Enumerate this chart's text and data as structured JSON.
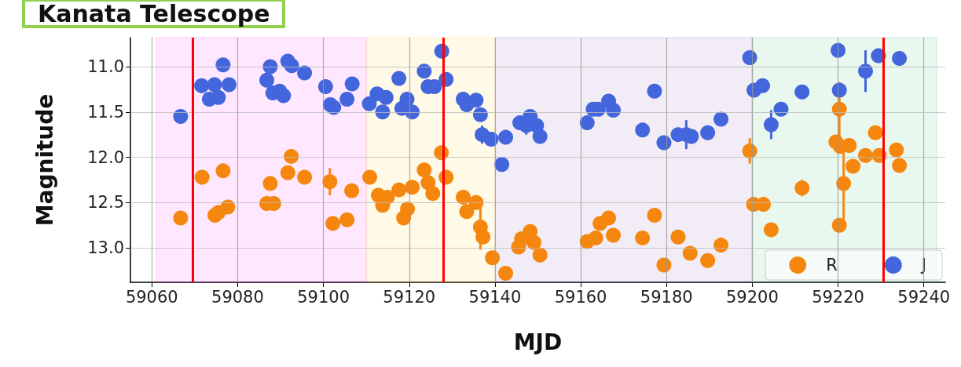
{
  "chart_data": {
    "type": "scatter",
    "title": "Kanata Telescope",
    "xlabel": "MJD",
    "ylabel": "Magnitude",
    "xlim": [
      59055,
      59245
    ],
    "xticks": [
      59060,
      59080,
      59100,
      59120,
      59140,
      59160,
      59180,
      59200,
      59220,
      59240
    ],
    "ylim": [
      13.38,
      10.68
    ],
    "yticks": [
      {
        "value": 11,
        "label": "11.0"
      },
      {
        "value": 11.5,
        "label": "11.5"
      },
      {
        "value": 12,
        "label": "12.0"
      },
      {
        "value": 12.5,
        "label": "12.5"
      },
      {
        "value": 13,
        "label": "13.0"
      }
    ],
    "grid": true,
    "legend": "bottom right",
    "marker": "circle",
    "bands": [
      {
        "axis": "x",
        "from": 59061,
        "to": 59110,
        "color": "#ff00ff"
      },
      {
        "axis": "x",
        "from": 59110,
        "to": 59140,
        "color": "#ffc000"
      },
      {
        "axis": "x",
        "from": 59140,
        "to": 59200,
        "color": "#7030a0"
      },
      {
        "axis": "x",
        "from": 59200,
        "to": 59243,
        "color": "#00b050"
      }
    ],
    "ref_lines": [
      {
        "axis": "x",
        "value": 59069.6,
        "color": "#ff0000"
      },
      {
        "axis": "x",
        "value": 59128,
        "color": "#ff0000"
      },
      {
        "axis": "x",
        "value": 59230.5,
        "color": "#ff0000"
      }
    ],
    "series": [
      {
        "name": "R",
        "color": "#f5870f",
        "x": [
          59066.7,
          59071.7,
          59074.7,
          59075.5,
          59076.6,
          59077.7,
          59086.8,
          59087.6,
          59088.4,
          59091.7,
          59092.5,
          59095.6,
          59101.5,
          59102.2,
          59105.5,
          59106.6,
          59110.8,
          59112.8,
          59113.8,
          59114.9,
          59117.6,
          59118.7,
          59119.6,
          59120.7,
          59123.5,
          59124.4,
          59125.5,
          59127.5,
          59128.6,
          59132.6,
          59133.4,
          59135.6,
          59136.6,
          59137.2,
          59139.4,
          59142.5,
          59145.5,
          59146.2,
          59148.2,
          59149.1,
          59150.5,
          59161.5,
          59163.5,
          59164.5,
          59166.5,
          59167.6,
          59174.4,
          59177.2,
          59179.4,
          59182.7,
          59185.5,
          59189.6,
          59192.7,
          59199.4,
          59200.3,
          59202.6,
          59204.4,
          59211.6,
          59220.3,
          59219.5,
          59220.5,
          59220.3,
          59221.3,
          59222.6,
          59223.5,
          59226.4,
          59228.7,
          59229.6,
          59233.6,
          59234.3
        ],
        "values": [
          12.67,
          12.22,
          12.64,
          12.61,
          12.15,
          12.55,
          12.51,
          12.29,
          12.51,
          12.17,
          11.99,
          12.22,
          12.27,
          12.73,
          12.69,
          12.37,
          12.22,
          12.42,
          12.53,
          12.44,
          12.36,
          12.67,
          12.57,
          12.33,
          12.14,
          12.28,
          12.4,
          11.95,
          12.22,
          12.44,
          12.6,
          12.5,
          12.77,
          12.88,
          13.11,
          13.28,
          12.99,
          12.9,
          12.82,
          12.94,
          13.08,
          12.93,
          12.89,
          12.73,
          12.67,
          12.86,
          12.89,
          12.64,
          13.19,
          12.88,
          13.06,
          13.14,
          12.97,
          11.93,
          12.52,
          12.52,
          12.8,
          12.34,
          11.47,
          11.83,
          11.88,
          12.75,
          12.29,
          11.87,
          12.1,
          11.98,
          11.73,
          11.98,
          11.92,
          12.09
        ],
        "errors": [
          null,
          null,
          null,
          null,
          null,
          null,
          null,
          null,
          null,
          null,
          0.06,
          null,
          0.15,
          null,
          null,
          null,
          null,
          null,
          null,
          null,
          null,
          null,
          null,
          null,
          null,
          null,
          null,
          null,
          null,
          null,
          null,
          null,
          0.25,
          null,
          null,
          null,
          null,
          null,
          null,
          null,
          null,
          null,
          null,
          null,
          null,
          null,
          null,
          null,
          null,
          null,
          null,
          null,
          null,
          0.14,
          null,
          null,
          null,
          0.09,
          0.3,
          null,
          null,
          null,
          0.4,
          null,
          null,
          null,
          null,
          null,
          null,
          null
        ]
      },
      {
        "name": "J",
        "color": "#4466dd",
        "x": [
          59066.7,
          59071.6,
          59073.4,
          59074.6,
          59075.5,
          59076.6,
          59078,
          59086.8,
          59087.6,
          59088.2,
          59089.8,
          59090.7,
          59091.7,
          59092.6,
          59095.6,
          59100.5,
          59101.6,
          59102.4,
          59105.5,
          59106.7,
          59110.7,
          59112.5,
          59114.6,
          59113.8,
          59117.6,
          59119.5,
          59118.3,
          59120.7,
          59123.5,
          59124.4,
          59125.9,
          59127.6,
          59128.6,
          59132.6,
          59133.4,
          59135.6,
          59136.6,
          59137,
          59139.1,
          59142.5,
          59141.6,
          59145.8,
          59147.3,
          59148.2,
          59149.7,
          59150.5,
          59161.5,
          59162.9,
          59164.1,
          59166.5,
          59167.6,
          59174.4,
          59177.2,
          59179.4,
          59182.7,
          59184.6,
          59185.8,
          59189.6,
          59192.7,
          59199.4,
          59200.4,
          59202.4,
          59204.4,
          59206.7,
          59211.6,
          59220,
          59220.3,
          59226.4,
          59229.4,
          59234.3
        ],
        "values": [
          11.55,
          11.21,
          11.36,
          11.2,
          11.34,
          10.98,
          11.2,
          11.15,
          11,
          11.29,
          11.27,
          11.32,
          10.94,
          10.99,
          11.07,
          11.22,
          11.42,
          11.45,
          11.36,
          11.19,
          11.41,
          11.3,
          11.34,
          11.5,
          11.13,
          11.36,
          11.46,
          11.5,
          11.05,
          11.22,
          11.22,
          10.83,
          11.14,
          11.36,
          11.42,
          11.37,
          11.53,
          11.75,
          11.8,
          11.78,
          12.08,
          11.62,
          11.65,
          11.55,
          11.65,
          11.77,
          11.62,
          11.47,
          11.47,
          11.38,
          11.48,
          11.7,
          11.27,
          11.84,
          11.75,
          11.75,
          11.77,
          11.73,
          11.58,
          10.9,
          11.26,
          11.21,
          11.64,
          11.47,
          11.28,
          10.82,
          11.26,
          11.05,
          10.88,
          10.91
        ],
        "errors": [
          null,
          null,
          null,
          null,
          null,
          null,
          null,
          null,
          null,
          null,
          null,
          null,
          null,
          null,
          null,
          null,
          null,
          null,
          null,
          null,
          null,
          null,
          null,
          null,
          null,
          null,
          null,
          null,
          null,
          null,
          null,
          null,
          null,
          null,
          null,
          null,
          null,
          0.1,
          null,
          null,
          null,
          null,
          0.1,
          null,
          null,
          null,
          null,
          null,
          null,
          null,
          null,
          null,
          null,
          null,
          null,
          0.16,
          null,
          null,
          null,
          null,
          null,
          null,
          0.16,
          null,
          null,
          null,
          null,
          0.23,
          null,
          null
        ]
      }
    ]
  }
}
